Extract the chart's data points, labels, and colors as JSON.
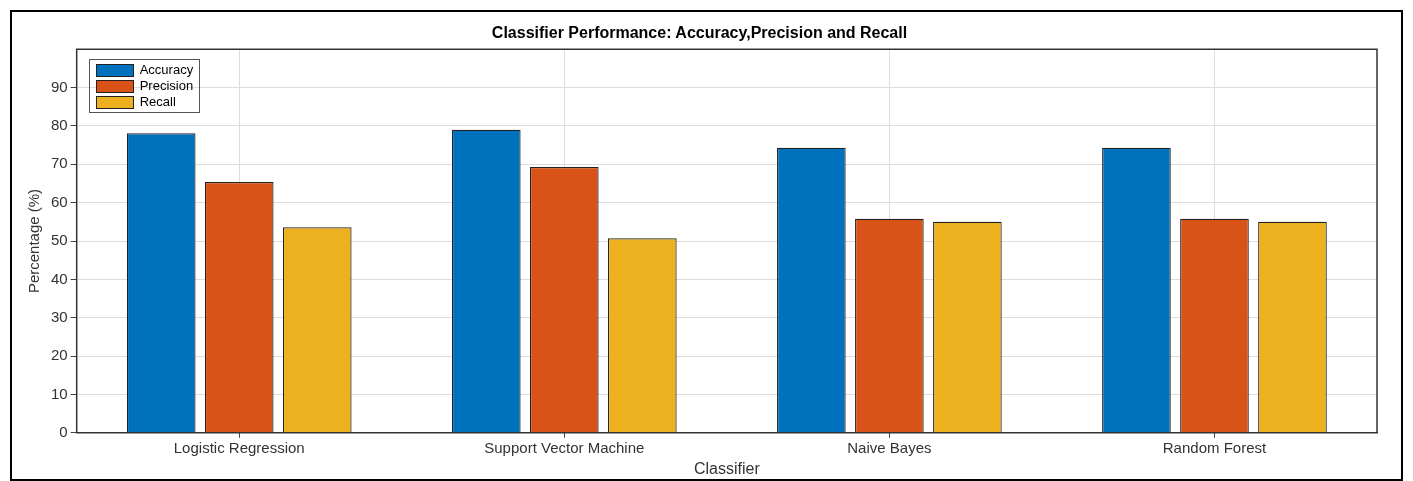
{
  "chart_data": {
    "type": "bar",
    "title": "Classifier Performance: Accuracy,Precision and Recall",
    "xlabel": "Classifier",
    "ylabel": "Percentage (%)",
    "categories": [
      "Logistic Regression",
      "Support Vector Machine",
      "Naive Bayes",
      "Random Forest"
    ],
    "series": [
      {
        "name": "Accuracy",
        "color": "#0072bd",
        "values": [
          78.1,
          79.0,
          74.3,
          74.3
        ]
      },
      {
        "name": "Precision",
        "color": "#d95319",
        "values": [
          65.4,
          69.3,
          55.8,
          55.8
        ]
      },
      {
        "name": "Recall",
        "color": "#edb120",
        "values": [
          53.6,
          50.7,
          55.0,
          55.0
        ]
      }
    ],
    "ylim": [
      0,
      100
    ],
    "yticks": [
      0,
      10,
      20,
      30,
      40,
      50,
      60,
      70,
      80,
      90
    ],
    "grid": true,
    "legend": "top left"
  }
}
